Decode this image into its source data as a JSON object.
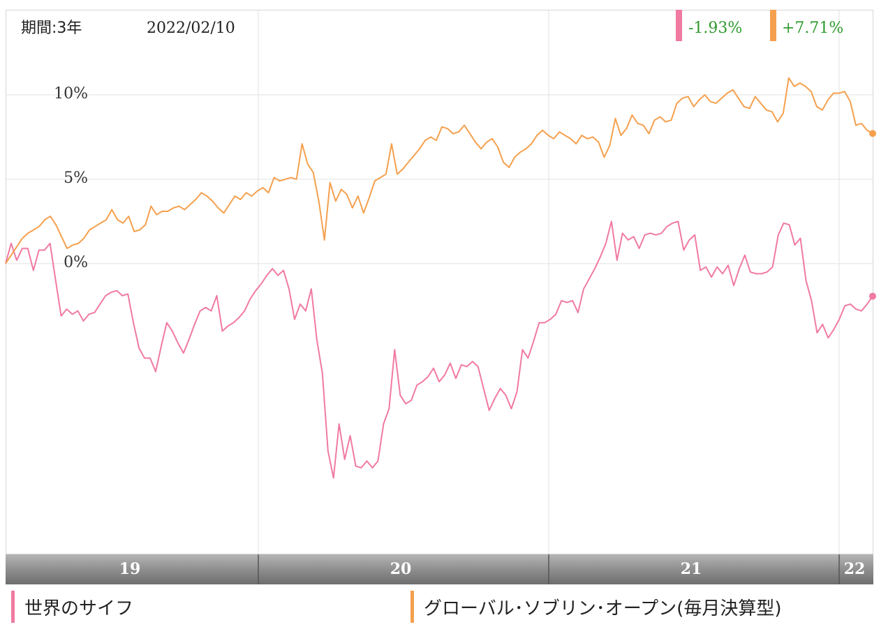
{
  "header": {
    "period_label": "期間:3年",
    "date_label": "2022/02/10"
  },
  "returns": [
    {
      "value_text": "-1.93%",
      "color": "#f07aa0"
    },
    {
      "value_text": "+7.71%",
      "color": "#f5a04e"
    }
  ],
  "colors": {
    "series_pink": "#f07aa0",
    "series_orange": "#f5a04e",
    "value_text": "#2e9a2e",
    "grid": "#e2e2e2",
    "axis_band": "#8f8f8f"
  },
  "chart_data": {
    "type": "line",
    "x_axis_labels": [
      "19",
      "20",
      "21",
      "22"
    ],
    "y_axis_labels": [
      "10%",
      "5%",
      "0%"
    ],
    "y_ticks": [
      10,
      5,
      0
    ],
    "ylim": [
      -17,
      15
    ],
    "grid": true,
    "legend_position": "bottom",
    "series": [
      {
        "name": "世界のサイフ",
        "color": "#f07aa0",
        "values": [
          0.0,
          1.2,
          0.2,
          0.9,
          0.9,
          -0.4,
          0.8,
          0.8,
          1.2,
          -1.0,
          -3.1,
          -2.7,
          -3.0,
          -2.8,
          -3.4,
          -3.0,
          -2.9,
          -2.4,
          -1.9,
          -1.7,
          -1.6,
          -1.9,
          -1.8,
          -3.5,
          -5.0,
          -5.6,
          -5.6,
          -6.4,
          -4.9,
          -3.5,
          -4.0,
          -4.7,
          -5.3,
          -4.5,
          -3.6,
          -2.8,
          -2.6,
          -2.8,
          -1.9,
          -4.0,
          -3.7,
          -3.5,
          -3.2,
          -2.8,
          -2.1,
          -1.6,
          -1.2,
          -0.7,
          -0.3,
          -0.7,
          -0.4,
          -1.5,
          -3.3,
          -2.4,
          -2.8,
          -1.5,
          -4.5,
          -6.5,
          -11.1,
          -12.7,
          -9.5,
          -11.6,
          -10.2,
          -12.0,
          -12.1,
          -11.7,
          -12.1,
          -11.7,
          -9.5,
          -8.6,
          -5.1,
          -7.8,
          -8.3,
          -8.1,
          -7.2,
          -7.0,
          -6.7,
          -6.2,
          -7.0,
          -6.6,
          -5.9,
          -6.8,
          -6.0,
          -6.1,
          -5.8,
          -6.1,
          -7.4,
          -8.7,
          -8.0,
          -7.4,
          -7.8,
          -8.6,
          -7.6,
          -5.1,
          -5.6,
          -4.6,
          -3.5,
          -3.5,
          -3.3,
          -3.0,
          -2.2,
          -2.3,
          -2.2,
          -2.9,
          -1.5,
          -0.9,
          -0.3,
          0.4,
          1.2,
          2.5,
          0.2,
          1.8,
          1.4,
          1.6,
          0.9,
          1.7,
          1.8,
          1.7,
          1.8,
          2.2,
          2.4,
          2.5,
          0.8,
          1.4,
          1.7,
          -0.4,
          -0.2,
          -0.8,
          -0.2,
          -0.6,
          -0.1,
          -1.3,
          -0.3,
          0.5,
          -0.5,
          -0.6,
          -0.6,
          -0.5,
          -0.2,
          1.7,
          2.4,
          2.3,
          1.1,
          1.5,
          -1.0,
          -2.2,
          -4.1,
          -3.6,
          -4.4,
          -3.9,
          -3.3,
          -2.5,
          -2.4,
          -2.7,
          -2.8,
          -2.4,
          -1.93
        ]
      },
      {
        "name": "グローバル･ソブリン･オープン(毎月決算型)",
        "color": "#f5a04e",
        "values": [
          0.0,
          0.5,
          1.0,
          1.5,
          1.8,
          2.0,
          2.2,
          2.6,
          2.8,
          2.3,
          1.6,
          0.9,
          1.1,
          1.2,
          1.5,
          2.0,
          2.2,
          2.4,
          2.6,
          3.2,
          2.6,
          2.4,
          2.8,
          1.9,
          2.0,
          2.3,
          3.4,
          2.9,
          3.1,
          3.1,
          3.3,
          3.4,
          3.2,
          3.5,
          3.8,
          4.2,
          4.0,
          3.7,
          3.3,
          3.0,
          3.5,
          4.0,
          3.8,
          4.2,
          4.0,
          4.3,
          4.5,
          4.2,
          5.1,
          4.9,
          5.0,
          5.1,
          5.0,
          7.1,
          5.9,
          5.4,
          3.7,
          1.4,
          4.8,
          3.7,
          4.4,
          4.1,
          3.3,
          4.0,
          3.0,
          3.9,
          4.9,
          5.1,
          5.3,
          7.1,
          5.3,
          5.6,
          6.0,
          6.4,
          6.8,
          7.3,
          7.5,
          7.3,
          8.1,
          8.0,
          7.7,
          7.8,
          8.2,
          7.7,
          7.2,
          6.8,
          7.2,
          7.4,
          6.9,
          6.0,
          5.7,
          6.3,
          6.6,
          6.8,
          7.1,
          7.6,
          7.9,
          7.6,
          7.4,
          7.8,
          7.6,
          7.4,
          7.1,
          7.6,
          7.4,
          7.5,
          7.2,
          6.3,
          7.0,
          8.6,
          7.6,
          8.0,
          8.8,
          8.3,
          8.2,
          7.7,
          8.5,
          8.7,
          8.4,
          8.5,
          9.5,
          9.8,
          9.9,
          9.3,
          9.7,
          10.0,
          9.6,
          9.5,
          9.8,
          10.1,
          10.3,
          9.8,
          9.3,
          9.2,
          9.9,
          9.5,
          9.1,
          9.0,
          8.4,
          8.9,
          11.0,
          10.5,
          10.7,
          10.5,
          10.2,
          9.3,
          9.1,
          9.7,
          10.1,
          10.1,
          10.2,
          9.6,
          8.2,
          8.3,
          7.9,
          7.71
        ]
      }
    ]
  }
}
